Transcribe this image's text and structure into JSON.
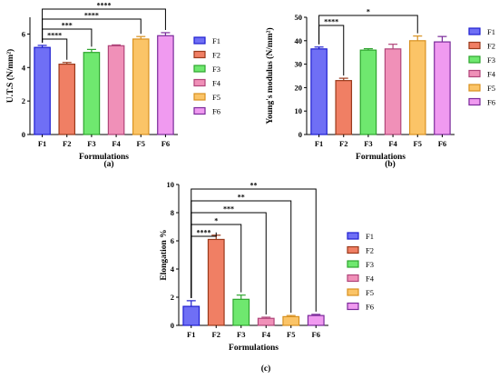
{
  "colors": {
    "F1": "#6f6ff5",
    "F2": "#f07f64",
    "F3": "#6fe86f",
    "F4": "#f090b8",
    "F5": "#fbc467",
    "F6": "#f09af0"
  },
  "border_colors": {
    "F1": "#1f1fd0",
    "F2": "#9a3a1c",
    "F3": "#2ea52e",
    "F4": "#b0457a",
    "F5": "#d89120",
    "F6": "#7a2a9a"
  },
  "chart_data": [
    {
      "type": "bar",
      "panel_label": "(a)",
      "ylabel": "U.T.S (N/mm²)",
      "xlabel": "Formulations",
      "categories": [
        "F1",
        "F2",
        "F3",
        "F4",
        "F5",
        "F6"
      ],
      "values": [
        5.2,
        4.2,
        4.9,
        5.3,
        5.7,
        5.9
      ],
      "errors": [
        0.12,
        0.1,
        0.18,
        0.05,
        0.15,
        0.18
      ],
      "ylim": [
        0,
        7
      ],
      "yticks": [
        "0",
        "2",
        "4",
        "6"
      ],
      "ytick_values": [
        0,
        2,
        4,
        6
      ],
      "legend": [
        "F1",
        "F2",
        "F3",
        "F4",
        "F5",
        "F6"
      ],
      "significance": [
        {
          "from": "F1",
          "to": "F2",
          "label": "****"
        },
        {
          "from": "F1",
          "to": "F3",
          "label": "***"
        },
        {
          "from": "F1",
          "to": "F5",
          "label": "****"
        },
        {
          "from": "F1",
          "to": "F6",
          "label": "****"
        }
      ]
    },
    {
      "type": "bar",
      "panel_label": "(b)",
      "ylabel": "Young's modulus (N/mm²)",
      "xlabel": "Formulations",
      "categories": [
        "F1",
        "F2",
        "F3",
        "F4",
        "F5",
        "F6"
      ],
      "values": [
        36.5,
        23,
        36,
        36.5,
        40,
        39.5
      ],
      "errors": [
        0.8,
        1.0,
        0.6,
        2.0,
        2.0,
        2.3
      ],
      "ylim": [
        0,
        50
      ],
      "yticks": [
        "0",
        "10",
        "20",
        "30",
        "40",
        "50"
      ],
      "ytick_values": [
        0,
        10,
        20,
        30,
        40,
        50
      ],
      "legend": [
        "F1",
        "F2",
        "F3",
        "F4",
        "F5",
        "F6"
      ],
      "significance": [
        {
          "from": "F1",
          "to": "F2",
          "label": "****"
        },
        {
          "from": "F1",
          "to": "F5",
          "label": "*"
        }
      ]
    },
    {
      "type": "bar",
      "panel_label": "(c)",
      "ylabel": "Elongation %",
      "xlabel": "Formulations",
      "categories": [
        "F1",
        "F2",
        "F3",
        "F4",
        "F5",
        "F6"
      ],
      "values": [
        1.35,
        6.1,
        1.85,
        0.5,
        0.62,
        0.7
      ],
      "errors": [
        0.4,
        0.3,
        0.3,
        0.08,
        0.08,
        0.08
      ],
      "ylim": [
        0,
        10
      ],
      "yticks": [
        "0",
        "2",
        "4",
        "6",
        "8",
        "10"
      ],
      "ytick_values": [
        0,
        2,
        4,
        6,
        8,
        10
      ],
      "legend": [
        "F1",
        "F2",
        "F3",
        "F4",
        "F5",
        "F6"
      ],
      "significance": [
        {
          "from": "F1",
          "to": "F2",
          "label": "****"
        },
        {
          "from": "F1",
          "to": "F3",
          "label": "*"
        },
        {
          "from": "F1",
          "to": "F4",
          "label": "***"
        },
        {
          "from": "F1",
          "to": "F5",
          "label": "**"
        },
        {
          "from": "F1",
          "to": "F6",
          "label": "**"
        }
      ]
    }
  ]
}
